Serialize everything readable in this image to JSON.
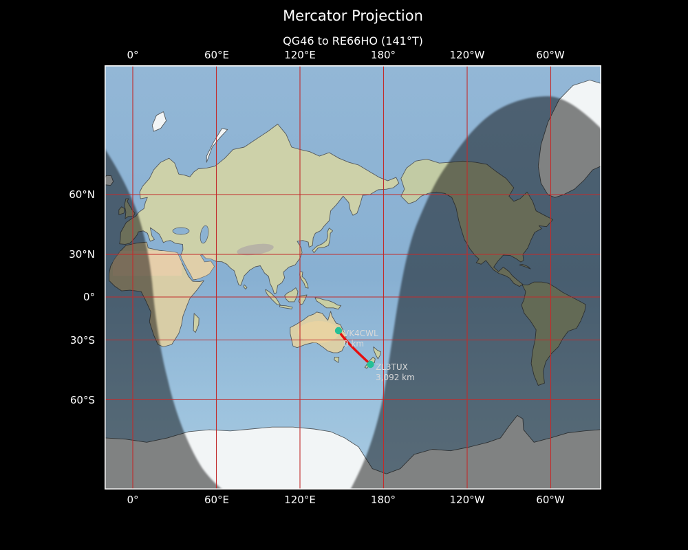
{
  "title": "Mercator Projection",
  "subtitle": "QG46 to RE66HO (141°T)",
  "axes": {
    "top": [
      "0°",
      "60°E",
      "120°E",
      "180°",
      "120°W",
      "60°W"
    ],
    "bottom": [
      "0°",
      "60°E",
      "120°E",
      "180°",
      "120°W",
      "60°W"
    ],
    "left": [
      "60°N",
      "30°N",
      "0°",
      "30°S",
      "60°S"
    ]
  },
  "markers": [
    {
      "callsign": "VK4CWL",
      "distance": "0 km"
    },
    {
      "callsign": "ZL3TUX",
      "distance": "3,092 km"
    }
  ],
  "colors": {
    "background": "#000000",
    "grid": "#c22b2b",
    "track": "#e51010",
    "marker": "#26c096",
    "ocean_day": "#8cb2d2",
    "night_overlay": "rgba(0,0,0,0.47)",
    "label_text": "#d9d9d9",
    "map_border": "#ffffff"
  }
}
